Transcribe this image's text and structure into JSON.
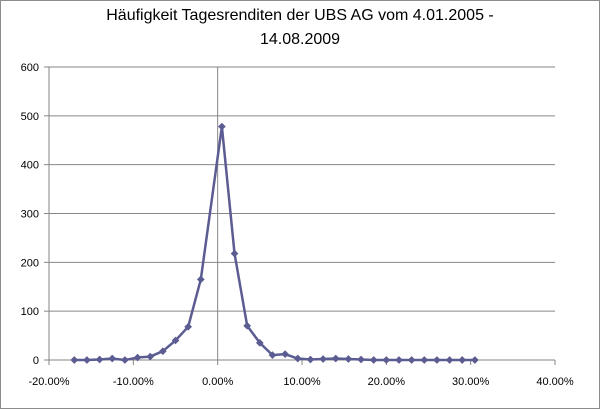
{
  "chart_data": {
    "type": "line",
    "title_line1": "Häufigkeit Tagesrenditen  der UBS AG vom 4.01.2005 -",
    "title_line2": "14.08.2009",
    "xlabel": "",
    "ylabel": "",
    "xlim": [
      -0.2,
      0.4
    ],
    "ylim": [
      0,
      600
    ],
    "x_ticks": [
      -0.2,
      -0.1,
      0.0,
      0.1,
      0.2,
      0.3,
      0.4
    ],
    "x_tick_labels": [
      "-20.00%",
      "-10.00%",
      "0.00%",
      "10.00%",
      "20.00%",
      "30.00%",
      "40.00%"
    ],
    "y_ticks": [
      0,
      100,
      200,
      300,
      400,
      500,
      600
    ],
    "y_tick_labels": [
      "0",
      "100",
      "200",
      "300",
      "400",
      "500",
      "600"
    ],
    "grid": "horizontal",
    "vertical_zero_line": true,
    "series": [
      {
        "color": "#5b5c91",
        "marker": "diamond",
        "x": [
          -0.17,
          -0.155,
          -0.14,
          -0.125,
          -0.11,
          -0.095,
          -0.08,
          -0.065,
          -0.05,
          -0.035,
          -0.02,
          0.005,
          0.02,
          0.035,
          0.05,
          0.065,
          0.08,
          0.095,
          0.11,
          0.125,
          0.14,
          0.155,
          0.17,
          0.185,
          0.2,
          0.215,
          0.23,
          0.245,
          0.26,
          0.275,
          0.29,
          0.305
        ],
        "y": [
          0,
          0,
          1,
          3,
          0,
          5,
          7,
          18,
          40,
          68,
          165,
          478,
          218,
          70,
          35,
          10,
          12,
          3,
          1,
          2,
          3,
          2,
          1,
          0,
          0,
          0,
          0,
          0,
          0,
          0,
          0,
          0
        ]
      }
    ]
  }
}
